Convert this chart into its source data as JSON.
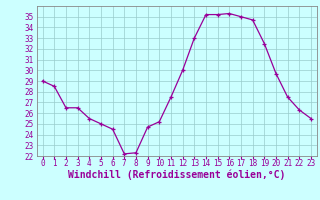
{
  "x": [
    0,
    1,
    2,
    3,
    4,
    5,
    6,
    7,
    8,
    9,
    10,
    11,
    12,
    13,
    14,
    15,
    16,
    17,
    18,
    19,
    20,
    21,
    22,
    23
  ],
  "y": [
    29,
    28.5,
    26.5,
    26.5,
    25.5,
    25,
    24.5,
    22.2,
    22.3,
    24.7,
    25.2,
    27.5,
    30,
    33,
    35.2,
    35.2,
    35.3,
    35,
    34.7,
    32.5,
    29.7,
    27.5,
    26.3,
    25.5
  ],
  "line_color": "#990099",
  "marker_color": "#990099",
  "bg_color": "#CCFFFF",
  "grid_color": "#99CCCC",
  "xlabel": "Windchill (Refroidissement éolien,°C)",
  "ylim": [
    22,
    36
  ],
  "xlim": [
    -0.5,
    23.5
  ],
  "yticks": [
    22,
    23,
    24,
    25,
    26,
    27,
    28,
    29,
    30,
    31,
    32,
    33,
    34,
    35
  ],
  "xticks": [
    0,
    1,
    2,
    3,
    4,
    5,
    6,
    7,
    8,
    9,
    10,
    11,
    12,
    13,
    14,
    15,
    16,
    17,
    18,
    19,
    20,
    21,
    22,
    23
  ],
  "tick_fontsize": 5.5,
  "xlabel_fontsize": 7.0
}
